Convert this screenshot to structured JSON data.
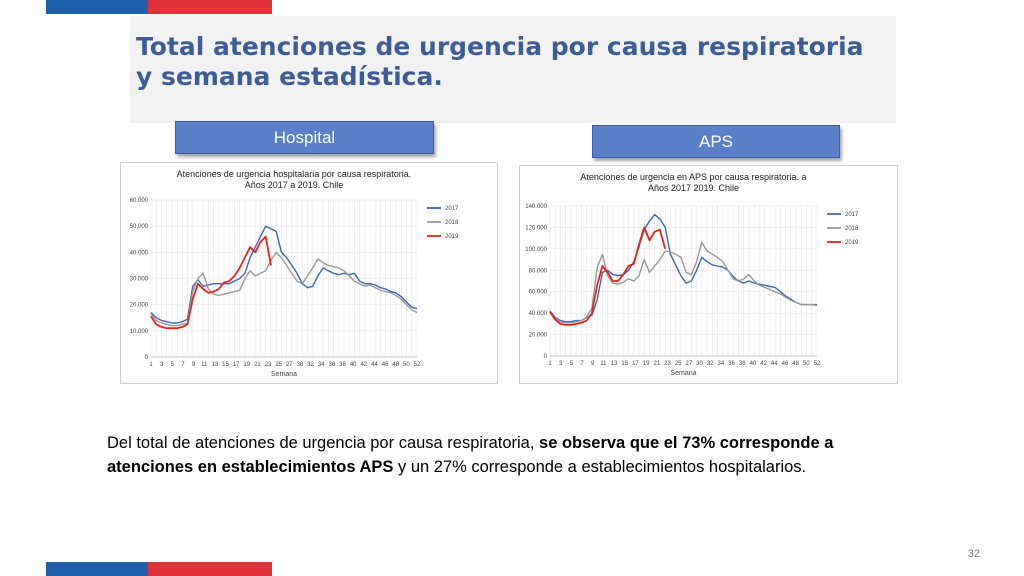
{
  "slide": {
    "title": "Total atenciones de urgencia por causa respiratoria y semana estadística.",
    "tab_hospital": "Hospital",
    "tab_aps": "APS",
    "description_part1": "Del total de atenciones de urgencia por causa respiratoria, ",
    "description_bold1": "se observa que el 73% corresponde a atenciones en establecimientos APS",
    "description_part2": " y un 27% corresponde a establecimientos hospitalarios.",
    "page_number": "32"
  },
  "colors": {
    "c2017": "#3a68b5",
    "c2018": "#9a9a9a",
    "c2019": "#e8211c",
    "title": "#3e5d96",
    "bar_blue": "#1f5fa8",
    "bar_red": "#e0303a"
  },
  "chart_data": [
    {
      "type": "line",
      "title": "Atenciones de urgencia hospitalaria por causa respiratoria. Años 2017 a 2019. Chile",
      "xlabel": "Semana",
      "ylabel": "",
      "ylim": [
        0,
        60000
      ],
      "y_ticks": [
        "0",
        "10.000",
        "20.000",
        "30.000",
        "40.000",
        "50.000",
        "60.000"
      ],
      "x_ticks": [
        "1",
        "3",
        "5",
        "7",
        "9",
        "11",
        "13",
        "15",
        "17",
        "19",
        "21",
        "23",
        "25",
        "27",
        "30",
        "32",
        "34",
        "36",
        "38",
        "40",
        "42",
        "44",
        "46",
        "48",
        "50",
        "52"
      ],
      "grid": true,
      "legend": "right",
      "series": [
        {
          "name": "2017",
          "values": [
            17000,
            15000,
            14000,
            13500,
            13000,
            13000,
            13500,
            14500,
            27000,
            29500,
            27000,
            27500,
            28000,
            28000,
            28000,
            28000,
            29000,
            30000,
            32000,
            38000,
            42000,
            46000,
            50000,
            49000,
            48000,
            40000,
            38000,
            35000,
            32000,
            28000,
            26500,
            27000,
            31000,
            34000,
            33000,
            32000,
            31500,
            32000,
            31500,
            32000,
            29000,
            28000,
            28000,
            27500,
            26500,
            26000,
            25000,
            24500,
            23000,
            21000,
            19000,
            18500
          ]
        },
        {
          "name": "2018",
          "values": [
            16500,
            14000,
            13000,
            12500,
            12000,
            12000,
            12500,
            13000,
            25000,
            30000,
            32000,
            26000,
            24000,
            23500,
            24000,
            24500,
            25000,
            25500,
            30000,
            33000,
            31000,
            32000,
            33000,
            37000,
            40000,
            38000,
            35000,
            32000,
            29000,
            28000,
            31000,
            34000,
            37500,
            36000,
            35000,
            34500,
            34000,
            33000,
            31000,
            29000,
            28000,
            27000,
            27500,
            26500,
            25500,
            25000,
            24500,
            23500,
            22000,
            20000,
            18000,
            17000
          ]
        },
        {
          "name": "2019",
          "values": [
            15500,
            12500,
            11500,
            11000,
            11000,
            11000,
            11500,
            12500,
            22000,
            28000,
            26000,
            24500,
            25000,
            26000,
            28500,
            29000,
            31000,
            34000,
            38000,
            42000,
            40000,
            44000,
            46000,
            35000
          ]
        }
      ]
    },
    {
      "type": "line",
      "title": "Atenciones de urgencia en APS por causa respiratoria. Años 2017 a 2019. Chile",
      "xlabel": "Semana",
      "ylabel": "",
      "ylim": [
        0,
        140000
      ],
      "y_ticks": [
        "0",
        "20.000",
        "40.000",
        "60.000",
        "80.000",
        "100.000",
        "120.000",
        "140.000"
      ],
      "x_ticks": [
        "1",
        "3",
        "5",
        "7",
        "9",
        "11",
        "13",
        "15",
        "17",
        "19",
        "21",
        "23",
        "25",
        "27",
        "30",
        "32",
        "34",
        "36",
        "38",
        "40",
        "42",
        "44",
        "46",
        "48",
        "50",
        "52"
      ],
      "grid": true,
      "legend": "right",
      "series": [
        {
          "name": "2017",
          "values": [
            42000,
            36000,
            33000,
            32000,
            32000,
            33000,
            33000,
            36000,
            38000,
            52000,
            78000,
            80000,
            76000,
            75000,
            76000,
            80000,
            88000,
            102000,
            118000,
            126000,
            132000,
            128000,
            120000,
            95000,
            85000,
            75000,
            68000,
            70000,
            80000,
            92000,
            88000,
            85000,
            84000,
            83000,
            80000,
            74000,
            70000,
            68000,
            70000,
            68000,
            67000,
            66000,
            65000,
            64000,
            60000,
            56000,
            53000,
            50000,
            48000,
            48000,
            48000,
            48000
          ]
        },
        {
          "name": "2018",
          "values": [
            41000,
            35000,
            32000,
            31000,
            31000,
            32000,
            33000,
            36000,
            45000,
            82000,
            95000,
            75000,
            68000,
            67000,
            69000,
            72000,
            70000,
            75000,
            90000,
            78000,
            84000,
            90000,
            98000,
            97000,
            95000,
            92000,
            78000,
            76000,
            88000,
            106000,
            98000,
            95000,
            92000,
            88000,
            80000,
            72000,
            70000,
            72000,
            76000,
            70000,
            66000,
            64000,
            62000,
            60000,
            58000,
            55000,
            52000,
            50000,
            48000,
            48000,
            48000,
            47000
          ]
        },
        {
          "name": "2019",
          "values": [
            41000,
            34000,
            30000,
            29000,
            29000,
            30000,
            31000,
            33000,
            40000,
            66000,
            84000,
            78000,
            70000,
            70000,
            76000,
            84000,
            86000,
            104000,
            120000,
            108000,
            116000,
            118000,
            100000
          ]
        }
      ]
    }
  ]
}
